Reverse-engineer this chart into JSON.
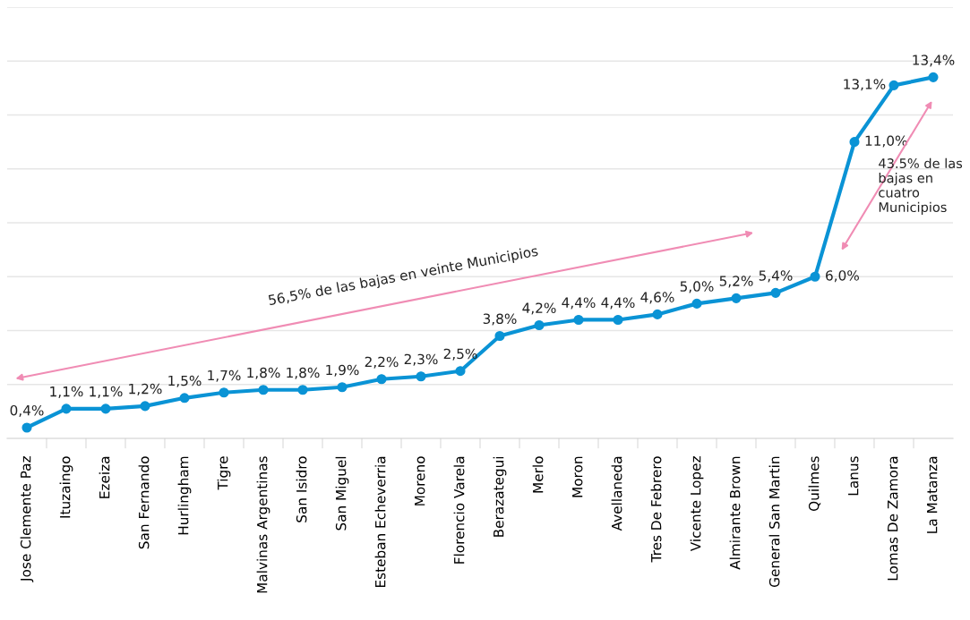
{
  "chart_data": {
    "type": "line",
    "categories": [
      "Jose Clemente Paz",
      "Ituzaingo",
      "Ezeiza",
      "San Fernando",
      "Hurlingham",
      "Tigre",
      "Malvinas Argentinas",
      "San Isidro",
      "San Miguel",
      "Esteban Echeverria",
      "Moreno",
      "Florencio Varela",
      "Berazategui",
      "Merlo",
      "Moron",
      "Avellaneda",
      "Tres De Febrero",
      "Vicente Lopez",
      "Almirante Brown",
      "General San Martin",
      "Quilmes",
      "Lanus",
      "Lomas De Zamora",
      "La Matanza"
    ],
    "series": [
      {
        "color": "#0a93d5",
        "values": [
          0.4,
          1.1,
          1.1,
          1.2,
          1.5,
          1.7,
          1.8,
          1.8,
          1.9,
          2.2,
          2.3,
          2.5,
          3.8,
          4.2,
          4.4,
          4.4,
          4.6,
          5.0,
          5.2,
          5.4,
          6.0,
          11.0,
          13.1,
          13.4
        ],
        "value_labels": [
          "0,4%",
          "1,1%",
          "1,1%",
          "1,2%",
          "1,5%",
          "1,7%",
          "1,8%",
          "1,8%",
          "1,9%",
          "2,2%",
          "2,3%",
          "2,5%",
          "3,8%",
          "4,2%",
          "4,4%",
          "4,4%",
          "4,6%",
          "5,0%",
          "5,2%",
          "5,4%",
          "6,0%",
          "11,0%",
          "13,1%",
          "13,4%"
        ]
      }
    ],
    "ylim": [
      0,
      16
    ],
    "yticks": [
      {
        "value": 2,
        "label": null
      },
      {
        "value": 4,
        "label": null
      },
      {
        "value": 6,
        "label": null
      },
      {
        "value": 8,
        "label": null
      },
      {
        "value": 10,
        "label": null
      },
      {
        "value": 12,
        "label": null
      },
      {
        "value": 14,
        "label": null
      },
      {
        "value": 16,
        "label": null
      }
    ],
    "tick_labels": "x",
    "grid": "y",
    "marker": "circle",
    "line_style": "solid",
    "legend": false,
    "annotations": [
      "56,5% de las bajas en veinte Municipios",
      "43.5% de las bajas en cuatro Municipios"
    ]
  }
}
